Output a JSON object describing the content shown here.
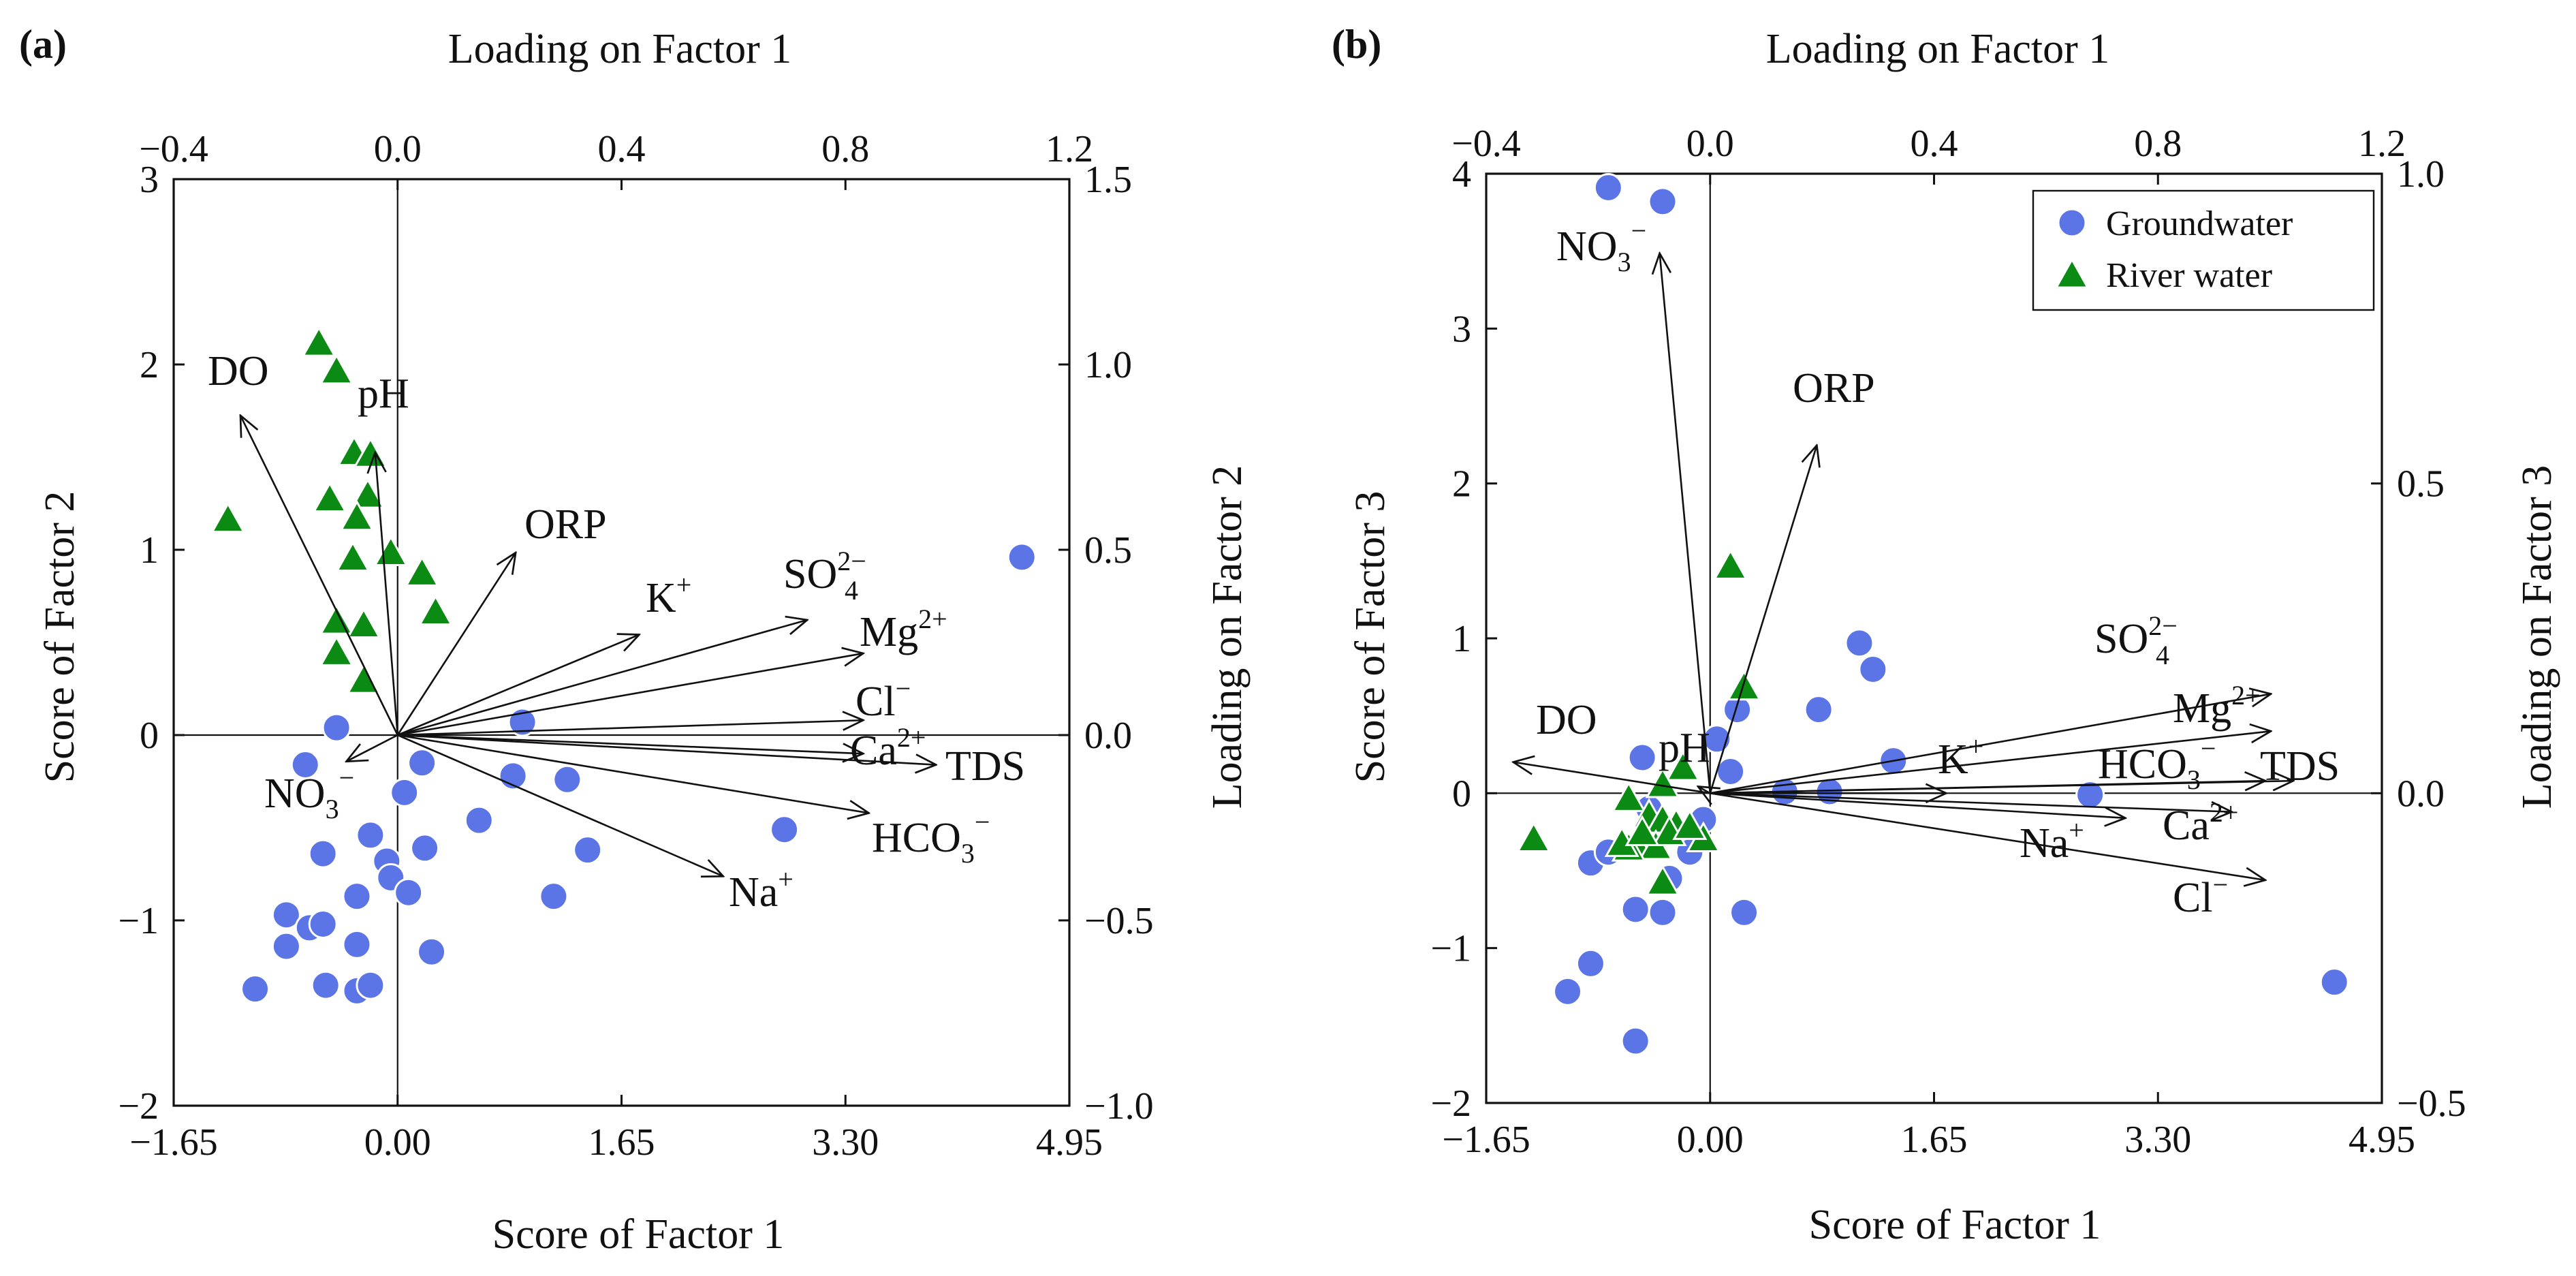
{
  "chart_data": [
    {
      "type": "scatter",
      "panel_label": "(a)",
      "xlabel_bottom": "Score of Factor 1",
      "ylabel_left": "Score of Factor 2",
      "xlabel_top": "Loading on Factor 1",
      "ylabel_right": "Loading on Factor 2",
      "score_xlim": [
        -1.65,
        4.95
      ],
      "score_ylim": [
        -2,
        3
      ],
      "loading_xlim": [
        -0.4,
        1.2
      ],
      "loading_ylim": [
        -1.0,
        1.5
      ],
      "bottom_ticks": [
        "−1.65",
        "0.00",
        "1.65",
        "3.30",
        "4.95"
      ],
      "bottom_tick_values": [
        -1.65,
        0,
        1.65,
        3.3,
        4.95
      ],
      "left_ticks": [
        "−2",
        "−1",
        "0",
        "1",
        "2",
        "3"
      ],
      "left_tick_values": [
        -2,
        -1,
        0,
        1,
        2,
        3
      ],
      "top_ticks": [
        "−0.4",
        "0.0",
        "0.4",
        "0.8",
        "1.2"
      ],
      "top_tick_values": [
        -0.4,
        0,
        0.4,
        0.8,
        1.2
      ],
      "right_ticks": [
        "−1.0",
        "−0.5",
        "0.0",
        "0.5",
        "1.0",
        "1.5"
      ],
      "right_tick_values": [
        -1.0,
        -0.5,
        0,
        0.5,
        1.0,
        1.5
      ],
      "legend": null,
      "series": [
        {
          "name": "Groundwater",
          "marker": "circle",
          "color": "#5b75e6",
          "points": [
            [
              -1.05,
              -1.37
            ],
            [
              -0.82,
              -0.97
            ],
            [
              -0.82,
              -1.14
            ],
            [
              -0.65,
              -1.04
            ],
            [
              -0.55,
              -1.02
            ],
            [
              -0.53,
              -1.35
            ],
            [
              -0.55,
              -0.64
            ],
            [
              -0.68,
              -0.16
            ],
            [
              -0.45,
              0.04
            ],
            [
              -0.3,
              -1.13
            ],
            [
              -0.3,
              -1.38
            ],
            [
              -0.3,
              -0.88
            ],
            [
              -0.3,
              -0.87
            ],
            [
              -0.2,
              -1.35
            ],
            [
              -0.2,
              -0.54
            ],
            [
              -0.08,
              -0.68
            ],
            [
              -0.05,
              -0.77
            ],
            [
              0.05,
              -0.31
            ],
            [
              0.08,
              -0.85
            ],
            [
              0.18,
              -0.15
            ],
            [
              0.2,
              -0.61
            ],
            [
              0.25,
              -1.17
            ],
            [
              0.6,
              -0.46
            ],
            [
              0.85,
              -0.22
            ],
            [
              0.92,
              0.07
            ],
            [
              1.25,
              -0.24
            ],
            [
              1.4,
              -0.62
            ],
            [
              1.15,
              -0.87
            ],
            [
              2.85,
              -0.51
            ],
            [
              4.6,
              0.96
            ]
          ]
        },
        {
          "name": "River water",
          "marker": "triangle",
          "color": "#0b8a14",
          "points": [
            [
              -1.25,
              1.16
            ],
            [
              -0.58,
              2.11
            ],
            [
              -0.45,
              1.96
            ],
            [
              -0.32,
              1.52
            ],
            [
              -0.2,
              1.51
            ],
            [
              -0.5,
              1.27
            ],
            [
              -0.22,
              1.29
            ],
            [
              -0.3,
              1.17
            ],
            [
              -0.33,
              0.95
            ],
            [
              -0.05,
              0.98
            ],
            [
              0.18,
              0.87
            ],
            [
              0.28,
              0.66
            ],
            [
              -0.45,
              0.61
            ],
            [
              -0.25,
              0.59
            ],
            [
              -0.45,
              0.44
            ],
            [
              -0.25,
              0.29
            ]
          ]
        }
      ],
      "loadings": [
        {
          "name": "DO",
          "loading": [
            -0.28,
            0.86
          ]
        },
        {
          "name": "pH",
          "loading": [
            -0.04,
            0.76
          ]
        },
        {
          "name": "ORP",
          "loading": [
            0.21,
            0.49
          ]
        },
        {
          "name": "K⁺",
          "loading": [
            0.43,
            0.27
          ]
        },
        {
          "name": "SO₄²⁻",
          "loading": [
            0.73,
            0.31
          ]
        },
        {
          "name": "Mg²⁺",
          "loading": [
            0.83,
            0.22
          ]
        },
        {
          "name": "Cl⁻",
          "loading": [
            0.83,
            0.04
          ]
        },
        {
          "name": "Ca²⁺",
          "loading": [
            0.83,
            -0.05
          ]
        },
        {
          "name": "TDS",
          "loading": [
            0.96,
            -0.08
          ]
        },
        {
          "name": "HCO₃⁻",
          "loading": [
            0.84,
            -0.21
          ]
        },
        {
          "name": "Na⁺",
          "loading": [
            0.58,
            -0.38
          ]
        },
        {
          "name": "NO₃⁻",
          "loading": [
            -0.09,
            -0.07
          ]
        }
      ],
      "labels": {
        "DO": "DO",
        "pH": "pH",
        "ORP": "ORP",
        "K": "K",
        "SO4": "SO",
        "Mg": "Mg",
        "Cl": "Cl",
        "Ca": "Ca",
        "TDS": "TDS",
        "HCO3": "HCO",
        "Na": "Na",
        "NO3": "NO",
        "sub_3": "3",
        "sub_4": "4",
        "sup_plus": "+",
        "sup_minus": "−",
        "sup_2plus": "2+",
        "sup_2minus": "2−"
      }
    },
    {
      "type": "scatter",
      "panel_label": "(b)",
      "xlabel_bottom": "Score of Factor 1",
      "ylabel_left": "Score of Factor 3",
      "xlabel_top": "Loading on Factor 1",
      "ylabel_right": "Loading on Factor 3",
      "score_xlim": [
        -1.65,
        4.95
      ],
      "score_ylim": [
        -2,
        4
      ],
      "loading_xlim": [
        -0.4,
        1.2
      ],
      "loading_ylim": [
        -0.5,
        1.0
      ],
      "bottom_ticks": [
        "−1.65",
        "0.00",
        "1.65",
        "3.30",
        "4.95"
      ],
      "bottom_tick_values": [
        -1.65,
        0,
        1.65,
        3.3,
        4.95
      ],
      "left_ticks": [
        "−2",
        "−1",
        "0",
        "1",
        "2",
        "3",
        "4"
      ],
      "left_tick_values": [
        -2,
        -1,
        0,
        1,
        2,
        3,
        4
      ],
      "top_ticks": [
        "−0.4",
        "0.0",
        "0.4",
        "0.8",
        "1.2"
      ],
      "top_tick_values": [
        -0.4,
        0,
        0.4,
        0.8,
        1.2
      ],
      "right_ticks": [
        "−0.5",
        "0.0",
        "0.5",
        "1.0"
      ],
      "right_tick_values": [
        -0.5,
        0,
        0.5,
        1.0
      ],
      "legend": {
        "position": "top-right",
        "entries": [
          "Groundwater",
          "River water"
        ]
      },
      "series": [
        {
          "name": "Groundwater",
          "marker": "circle",
          "color": "#5b75e6",
          "points": [
            [
              -0.75,
              3.91
            ],
            [
              -0.35,
              3.82
            ],
            [
              -1.05,
              -1.28
            ],
            [
              -0.88,
              -1.1
            ],
            [
              -0.55,
              -1.6
            ],
            [
              -0.55,
              -0.75
            ],
            [
              -0.35,
              -0.77
            ],
            [
              -0.88,
              -0.45
            ],
            [
              -0.75,
              -0.38
            ],
            [
              -0.5,
              0.23
            ],
            [
              -0.45,
              -0.1
            ],
            [
              -0.3,
              -0.55
            ],
            [
              -0.15,
              -0.38
            ],
            [
              -0.05,
              -0.17
            ],
            [
              0.05,
              0.35
            ],
            [
              0.15,
              0.14
            ],
            [
              0.2,
              0.54
            ],
            [
              0.25,
              -0.77
            ],
            [
              0.55,
              0.01
            ],
            [
              0.8,
              0.54
            ],
            [
              0.88,
              0.01
            ],
            [
              1.1,
              0.97
            ],
            [
              1.2,
              0.8
            ],
            [
              1.35,
              0.21
            ],
            [
              2.8,
              -0.01
            ],
            [
              4.6,
              -1.22
            ]
          ]
        },
        {
          "name": "River water",
          "marker": "triangle",
          "color": "#0b8a14",
          "points": [
            [
              -1.3,
              -0.3
            ],
            [
              0.15,
              1.46
            ],
            [
              0.25,
              0.68
            ],
            [
              -0.2,
              0.16
            ],
            [
              -0.35,
              0.05
            ],
            [
              -0.6,
              -0.04
            ],
            [
              -0.45,
              -0.15
            ],
            [
              -0.35,
              -0.18
            ],
            [
              -0.25,
              -0.21
            ],
            [
              -0.55,
              -0.33
            ],
            [
              -0.4,
              -0.35
            ],
            [
              -0.6,
              -0.36
            ],
            [
              -0.3,
              -0.26
            ],
            [
              -0.05,
              -0.3
            ],
            [
              -0.35,
              -0.58
            ],
            [
              -0.65,
              -0.33
            ],
            [
              -0.15,
              -0.22
            ],
            [
              -0.5,
              -0.26
            ]
          ]
        }
      ],
      "loadings": [
        {
          "name": "NO₃⁻",
          "loading": [
            -0.09,
            0.87
          ]
        },
        {
          "name": "ORP",
          "loading": [
            0.19,
            0.56
          ]
        },
        {
          "name": "SO₄²⁻",
          "loading": [
            1.0,
            0.16
          ]
        },
        {
          "name": "Mg²⁺",
          "loading": [
            1.0,
            0.1
          ]
        },
        {
          "name": "HCO₃⁻",
          "loading": [
            0.99,
            0.02
          ]
        },
        {
          "name": "TDS",
          "loading": [
            1.04,
            0.02
          ]
        },
        {
          "name": "K⁺",
          "loading": [
            0.42,
            0.0
          ]
        },
        {
          "name": "Ca²⁺",
          "loading": [
            0.93,
            -0.03
          ]
        },
        {
          "name": "Na⁺",
          "loading": [
            0.74,
            -0.04
          ]
        },
        {
          "name": "Cl⁻",
          "loading": [
            0.99,
            -0.14
          ]
        },
        {
          "name": "DO",
          "loading": [
            -0.35,
            0.05
          ]
        },
        {
          "name": "pH",
          "loading": [
            -0.02,
            0.01
          ]
        }
      ],
      "labels": {
        "DO": "DO",
        "pH": "pH",
        "ORP": "ORP",
        "K": "K",
        "SO4": "SO",
        "Mg": "Mg",
        "Cl": "Cl",
        "Ca": "Ca",
        "TDS": "TDS",
        "HCO3": "HCO",
        "Na": "Na",
        "NO3": "NO",
        "sub_3": "3",
        "sub_4": "4",
        "sup_plus": "+",
        "sup_minus": "−",
        "sup_2plus": "2+",
        "sup_2minus": "2−"
      }
    }
  ]
}
